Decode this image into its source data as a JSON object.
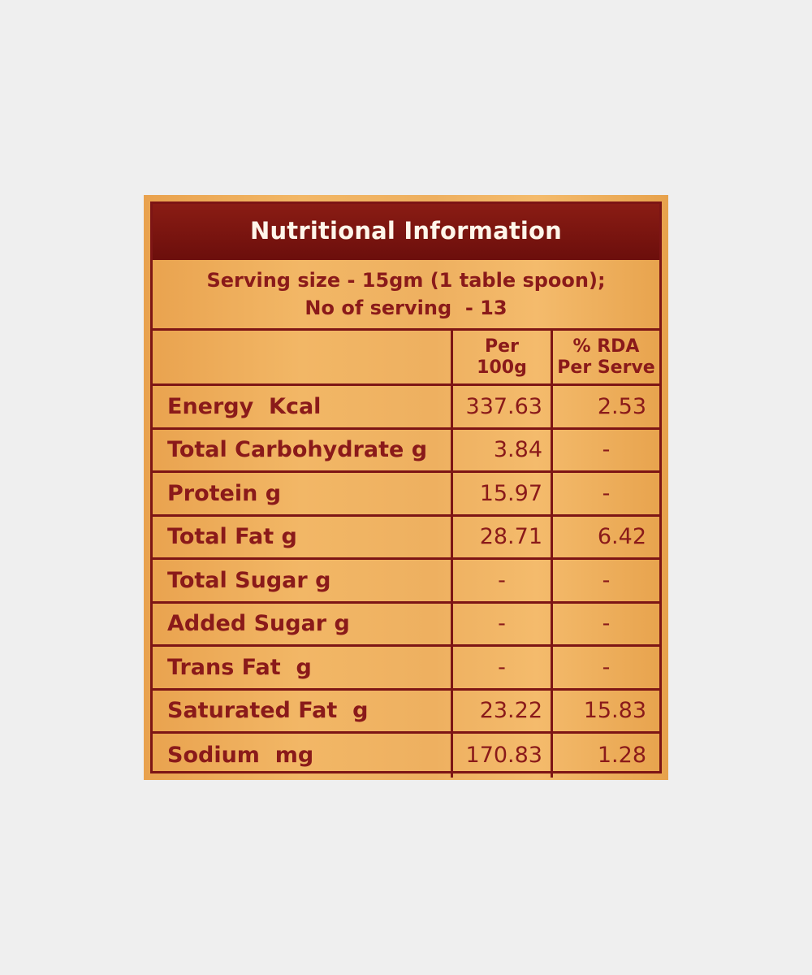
{
  "title": "Nutritional Information",
  "serving": {
    "line1": "Serving size - 15gm (1 table spoon);",
    "line2": "No of serving  - 13"
  },
  "columns": {
    "per_line1": "Per",
    "per_line2": "100g",
    "rda_line1": "% RDA",
    "rda_line2": "Per Serve"
  },
  "rows": [
    {
      "name": "Energy  Kcal",
      "per100g": "337.63",
      "rda": "2.53"
    },
    {
      "name": "Total Carbohydrate g",
      "per100g": "3.84",
      "rda": "-"
    },
    {
      "name": "Protein g",
      "per100g": "15.97",
      "rda": "-"
    },
    {
      "name": "Total Fat g",
      "per100g": "28.71",
      "rda": "6.42"
    },
    {
      "name": "Total Sugar g",
      "per100g": "-",
      "rda": "-"
    },
    {
      "name": "Added Sugar g",
      "per100g": "-",
      "rda": "-"
    },
    {
      "name": "Trans Fat  g",
      "per100g": "-",
      "rda": "-"
    },
    {
      "name": "Saturated Fat  g",
      "per100g": "23.22",
      "rda": "15.83"
    },
    {
      "name": "Sodium  mg",
      "per100g": "170.83",
      "rda": "1.28"
    }
  ],
  "colors": {
    "label_orange": "#f2b766",
    "header_maroon": "#7d1515",
    "text_red": "#8a1a1a",
    "background": "#efefef"
  }
}
